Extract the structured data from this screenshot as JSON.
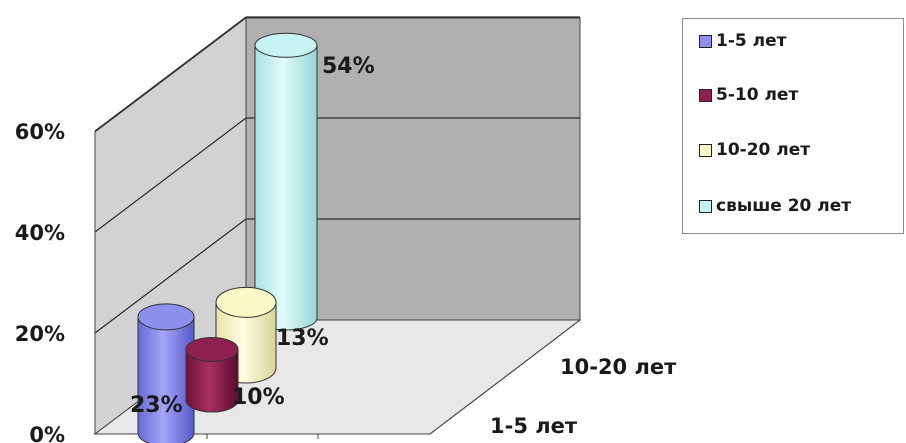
{
  "chart_data": {
    "type": "bar",
    "style": "3d-cylinder",
    "ylim": [
      0,
      0.6
    ],
    "y_ticks": [
      "0%",
      "20%",
      "40%",
      "60%"
    ],
    "depth_categories": [
      "1-5 лет",
      "10-20 лет"
    ],
    "series": [
      {
        "name": "1-5 лет",
        "value": 0.23,
        "label": "23%",
        "color": "#8f8ff0"
      },
      {
        "name": "5-10 лет",
        "value": 0.1,
        "label": "10%",
        "color": "#8e2050"
      },
      {
        "name": "10-20 лет",
        "value": 0.13,
        "label": "13%",
        "color": "#fbf8c8"
      },
      {
        "name": "свыше 20 лет",
        "value": 0.54,
        "label": "54%",
        "color": "#c8f3f3"
      }
    ],
    "legend_position": "right",
    "grid": true
  }
}
